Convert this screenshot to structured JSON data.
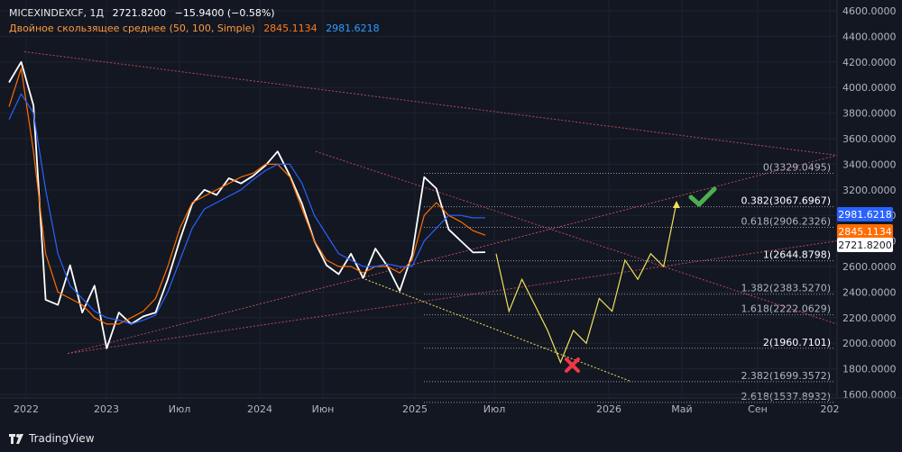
{
  "legend": {
    "symbol": "MICEXINDEXCF, 1Д",
    "price": "2721.8200",
    "change": "−15.9400 (−0.58%)",
    "ma_title": "Двойное скользящее среднее (50, 100, Simple)",
    "ma50": "2845.1134",
    "ma100": "2981.6218"
  },
  "brand": {
    "name": "TradingView"
  },
  "colors": {
    "background": "#131722",
    "price_line": "#ffffff",
    "ma50": "#ff6d00",
    "ma100": "#2962ff",
    "fib": "#9598a1",
    "forecast": "#f0e15a",
    "trend_dotted": "#b24a5a",
    "check": "#4caf50",
    "cross": "#f23645"
  },
  "chart_data": {
    "type": "line",
    "title": "MICEXINDEXCF, 1Д",
    "ylim": [
      1500,
      4600
    ],
    "y_ticks": [
      "4600.0000",
      "4400.0000",
      "4200.0000",
      "4000.0000",
      "3800.0000",
      "3600.0000",
      "3400.0000",
      "3200.0000",
      "3000.0000",
      "2800.0000",
      "2600.0000",
      "2400.0000",
      "2200.0000",
      "2000.0000",
      "1800.0000",
      "1600.0000"
    ],
    "x_ticks": [
      "2022",
      "2023",
      "Июл",
      "2024",
      "Июн",
      "2025",
      "Июл",
      "2026",
      "Май",
      "Сен",
      "202"
    ],
    "price_badges": [
      {
        "label": "2981.6218",
        "value": 2981.6218,
        "color": "#2962ff"
      },
      {
        "label": "2845.1134",
        "value": 2845.1134,
        "color": "#ff6d00"
      },
      {
        "label": "2721.8200",
        "value": 2721.82,
        "color": "#ffffff"
      }
    ],
    "fib_levels": [
      {
        "label": "0(3329.0495)",
        "value": 3329.0495
      },
      {
        "label": "0.382(3067.6967)",
        "value": 3067.6967
      },
      {
        "label": "0.618(2906.2326)",
        "value": 2906.2326
      },
      {
        "label": "1(2644.8798)",
        "value": 2644.8798
      },
      {
        "label": "1.382(2383.5270)",
        "value": 2383.527
      },
      {
        "label": "1.618(2222.0629)",
        "value": 2222.0629
      },
      {
        "label": "2(1960.7101)",
        "value": 1960.7101
      },
      {
        "label": "2.382(1699.3572)",
        "value": 1699.3572
      },
      {
        "label": "2.618(1537.8932)",
        "value": 1537.8932
      }
    ],
    "series": [
      {
        "name": "MICEXINDEXCF",
        "values": [
          4050,
          4200,
          3850,
          2350,
          2300,
          2600,
          2250,
          2450,
          1950,
          2250,
          2150,
          2200,
          2250,
          2500,
          2800,
          3100,
          3200,
          3150,
          3300,
          3250,
          3300,
          3400,
          3500,
          3300,
          3100,
          2800,
          2600,
          2550,
          2700,
          2500,
          2750,
          2600,
          2400,
          2700,
          3300,
          3200,
          2900,
          2800,
          2700,
          2721.82
        ]
      },
      {
        "name": "MA50",
        "values": [
          3850,
          4150,
          3500,
          2700,
          2400,
          2350,
          2300,
          2200,
          2150,
          2150,
          2200,
          2250,
          2350,
          2600,
          2900,
          3100,
          3150,
          3200,
          3250,
          3300,
          3330,
          3400,
          3400,
          3300,
          3050,
          2800,
          2650,
          2600,
          2600,
          2550,
          2600,
          2600,
          2550,
          2650,
          3000,
          3100,
          3000,
          2950,
          2880,
          2845.1134
        ]
      },
      {
        "name": "MA100",
        "values": [
          3750,
          3950,
          3800,
          3200,
          2700,
          2450,
          2350,
          2250,
          2200,
          2180,
          2150,
          2180,
          2220,
          2400,
          2650,
          2900,
          3050,
          3100,
          3150,
          3200,
          3280,
          3350,
          3400,
          3400,
          3250,
          3000,
          2850,
          2700,
          2650,
          2600,
          2600,
          2620,
          2600,
          2600,
          2800,
          2900,
          3000,
          3000,
          2980,
          2981.6218
        ]
      },
      {
        "name": "Forecast",
        "values": [
          2700,
          2250,
          2500,
          2300,
          2100,
          1850,
          2100,
          2000,
          2350,
          2250,
          2650,
          2500,
          2700,
          2600,
          3100
        ]
      }
    ]
  }
}
